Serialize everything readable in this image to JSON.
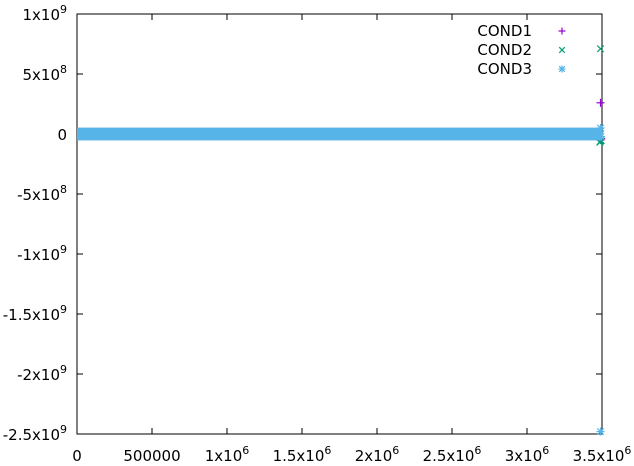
{
  "chart_data": {
    "type": "scatter",
    "title": "",
    "xlabel": "",
    "ylabel": "",
    "xlim": [
      0,
      3500000
    ],
    "ylim": [
      -2500000000,
      1000000000
    ],
    "grid": false,
    "legend_placement": "top-right",
    "x_ticks": [
      {
        "value": 0,
        "label": "0"
      },
      {
        "value": 500000,
        "label": "500000"
      },
      {
        "value": 1000000,
        "label": "1x10",
        "exp": "6"
      },
      {
        "value": 1500000,
        "label": "1.5x10",
        "exp": "6"
      },
      {
        "value": 2000000,
        "label": "2x10",
        "exp": "6"
      },
      {
        "value": 2500000,
        "label": "2.5x10",
        "exp": "6"
      },
      {
        "value": 3000000,
        "label": "3x10",
        "exp": "6"
      },
      {
        "value": 3500000,
        "label": "3.5x10",
        "exp": "6"
      }
    ],
    "y_ticks": [
      {
        "value": 1000000000,
        "label": "1x10",
        "exp": "9"
      },
      {
        "value": 500000000,
        "label": "5x10",
        "exp": "8"
      },
      {
        "value": 0,
        "label": "0",
        "exp": ""
      },
      {
        "value": -500000000,
        "label": "-5x10",
        "exp": "8"
      },
      {
        "value": -1000000000,
        "label": "-1x10",
        "exp": "9"
      },
      {
        "value": -1500000000,
        "label": "-1.5x10",
        "exp": "9"
      },
      {
        "value": -2000000000,
        "label": "-2x10",
        "exp": "9"
      },
      {
        "value": -2500000000,
        "label": "-2.5x10",
        "exp": "9"
      }
    ],
    "series": [
      {
        "name": "COND1",
        "marker": "plus",
        "color": "#9400d3",
        "x_range": [
          0,
          3500000
        ],
        "y_band": [
          -5000000,
          5000000
        ],
        "points": [
          [
            3490000,
            260000000
          ],
          [
            3490000,
            -50000000
          ],
          [
            3495000,
            -40000000
          ]
        ]
      },
      {
        "name": "COND2",
        "marker": "cross",
        "color": "#009e73",
        "x_range": [
          0,
          3500000
        ],
        "y_band": [
          -5000000,
          5000000
        ],
        "points": [
          [
            3490000,
            710000000
          ],
          [
            3490000,
            -60000000
          ],
          [
            3485000,
            -70000000
          ],
          [
            3495000,
            -55000000
          ]
        ]
      },
      {
        "name": "COND3",
        "marker": "star",
        "color": "#56b4e9",
        "x_range": [
          0,
          3500000
        ],
        "y_band": [
          -20000000,
          20000000
        ],
        "points": [
          [
            3490000,
            50000000
          ],
          [
            3488000,
            20000000
          ],
          [
            3492000,
            -20000000
          ],
          [
            3490000,
            -2480000000
          ]
        ]
      }
    ]
  }
}
